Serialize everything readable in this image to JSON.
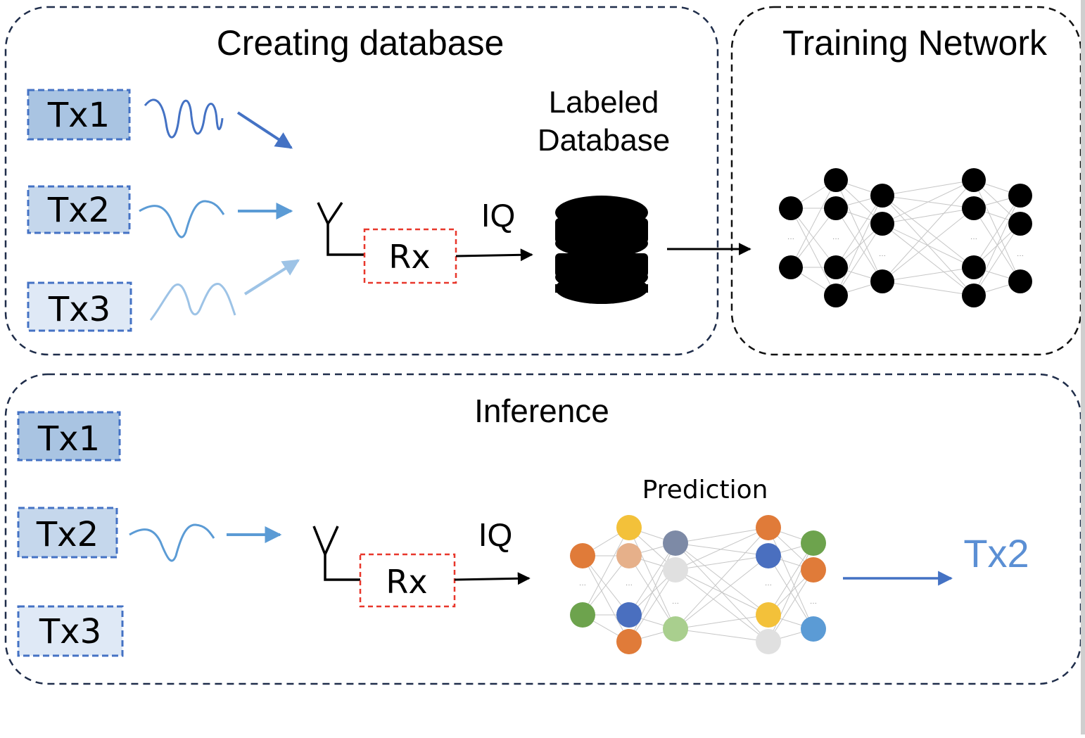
{
  "sections": {
    "creating_database": "Creating database",
    "training_network": "Training Network",
    "inference": "Inference"
  },
  "transmitters": [
    "Tx1",
    "Tx2",
    "Tx3"
  ],
  "receiver_label": "Rx",
  "iq_label": "IQ",
  "database_label": [
    "Labeled",
    "Database"
  ],
  "prediction_label": "Prediction",
  "output_label": "Tx2",
  "colors": {
    "tx1_fill": "#a9c4e2",
    "tx2_fill": "#c5d7ec",
    "tx3_fill": "#dfe9f6",
    "tx_border": "#4472c4",
    "rx_border": "#e8372b",
    "section_border": "#1f2d4a",
    "output_text": "#5b8fd4",
    "arrow_blue": "#4472c4",
    "net_palette": [
      "#e07b39",
      "#f3c13a",
      "#4a6fbf",
      "#6da34d",
      "#7d8aa6",
      "#e0e0e0",
      "#a9cf8e",
      "#e6b08a",
      "#5b9bd5"
    ]
  }
}
